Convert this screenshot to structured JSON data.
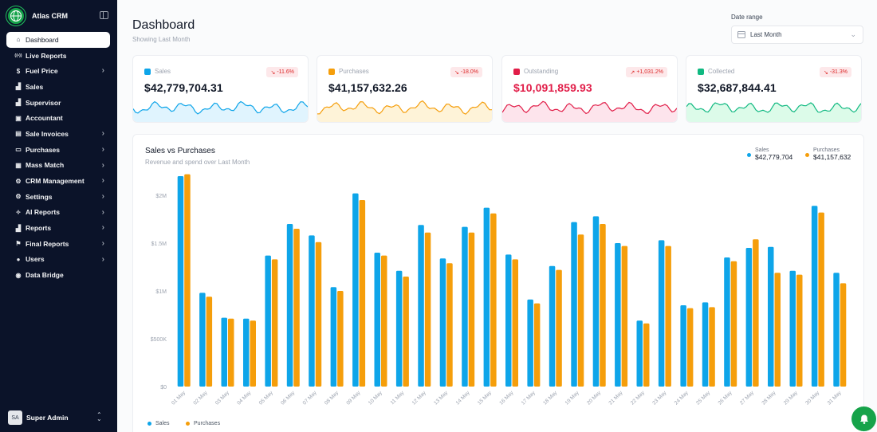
{
  "brand": {
    "name": "Atlas CRM"
  },
  "sidebar": {
    "items": [
      {
        "label": "Dashboard",
        "icon": "home-icon",
        "glyph": "⌂",
        "active": true,
        "expandable": false
      },
      {
        "label": "Live Reports",
        "icon": "broadcast-icon",
        "glyph": "((•))",
        "expandable": false
      },
      {
        "label": "Fuel Price",
        "icon": "dollar-icon",
        "glyph": "$",
        "expandable": true
      },
      {
        "label": "Sales",
        "icon": "bar-chart-icon",
        "glyph": "▟",
        "expandable": false
      },
      {
        "label": "Supervisor",
        "icon": "chart-icon",
        "glyph": "▟",
        "expandable": false
      },
      {
        "label": "Accountant",
        "icon": "briefcase-icon",
        "glyph": "▣",
        "expandable": false
      },
      {
        "label": "Sale Invoices",
        "icon": "receipt-icon",
        "glyph": "▤",
        "expandable": true
      },
      {
        "label": "Purchases",
        "icon": "cart-icon",
        "glyph": "▭",
        "expandable": true
      },
      {
        "label": "Mass Match",
        "icon": "grid-icon",
        "glyph": "▦",
        "expandable": true
      },
      {
        "label": "CRM Management",
        "icon": "settings-cog-icon",
        "glyph": "⚙",
        "expandable": true
      },
      {
        "label": "Settings",
        "icon": "gear-icon",
        "glyph": "⚙",
        "expandable": true
      },
      {
        "label": "AI Reports",
        "icon": "sparkle-icon",
        "glyph": "✧",
        "expandable": true
      },
      {
        "label": "Reports",
        "icon": "file-chart-icon",
        "glyph": "▟",
        "expandable": true
      },
      {
        "label": "Final Reports",
        "icon": "flag-icon",
        "glyph": "⚑",
        "expandable": true
      },
      {
        "label": "Users",
        "icon": "users-icon",
        "glyph": "●",
        "expandable": true
      },
      {
        "label": "Data Bridge",
        "icon": "database-icon",
        "glyph": "◉",
        "expandable": false
      }
    ]
  },
  "user": {
    "initials": "SA",
    "name": "Super Admin"
  },
  "header": {
    "title": "Dashboard",
    "subtitle": "Showing Last Month"
  },
  "date_range": {
    "label": "Date range",
    "value": "Last Month"
  },
  "cards": [
    {
      "label": "Sales",
      "value": "$42,779,704.31",
      "badge": "-11.6%",
      "trend": "down",
      "accent": "#0ea5e9",
      "fill": "#e0f4fe",
      "value_color": "#111827",
      "badge_bg": "#fde8ea",
      "badge_color": "#dc2626",
      "icon": "wallet-icon"
    },
    {
      "label": "Purchases",
      "value": "$41,157,632.26",
      "badge": "-18.0%",
      "trend": "down",
      "accent": "#f59e0b",
      "fill": "#fef3d8",
      "value_color": "#111827",
      "badge_bg": "#fde8ea",
      "badge_color": "#dc2626",
      "icon": "cart-icon"
    },
    {
      "label": "Outstanding",
      "value": "$10,091,859.93",
      "badge": "+1,031.2%",
      "trend": "up",
      "accent": "#e11d48",
      "fill": "#fde4ec",
      "value_color": "#e11d48",
      "badge_bg": "#fde8ea",
      "badge_color": "#dc2626",
      "icon": "warning-icon"
    },
    {
      "label": "Collected",
      "value": "$32,687,844.41",
      "badge": "-31.3%",
      "trend": "down",
      "accent": "#10b981",
      "fill": "#dcfbe9",
      "value_color": "#111827",
      "badge_bg": "#fde8ea",
      "badge_color": "#dc2626",
      "icon": "check-circle-icon"
    }
  ],
  "chart": {
    "title": "Sales vs Purchases",
    "subtitle": "Revenue and spend over Last Month",
    "legend_top": [
      {
        "name": "Sales",
        "value": "$42,779,704",
        "color": "#0ea5e9"
      },
      {
        "name": "Purchases",
        "value": "$41,157,632",
        "color": "#f59e0b"
      }
    ],
    "legend_bottom": [
      "Sales",
      "Purchases"
    ]
  },
  "chart_data": {
    "type": "bar",
    "title": "Sales vs Purchases",
    "ylim": [
      0,
      2200000
    ],
    "yticks": [
      0,
      500000,
      1000000,
      1500000,
      2000000
    ],
    "ytick_labels": [
      "$0",
      "$500K",
      "$1M",
      "$1.5M",
      "$2M"
    ],
    "categories": [
      "01 May",
      "02 May",
      "03 May",
      "04 May",
      "05 May",
      "06 May",
      "07 May",
      "08 May",
      "09 May",
      "10 May",
      "11 May",
      "12 May",
      "13 May",
      "14 May",
      "15 May",
      "16 May",
      "17 May",
      "18 May",
      "19 May",
      "20 May",
      "21 May",
      "22 May",
      "23 May",
      "24 May",
      "25 May",
      "26 May",
      "27 May",
      "28 May",
      "29 May",
      "30 May",
      "31 May"
    ],
    "series": [
      {
        "name": "Sales",
        "color": "#0ea5e9",
        "values": [
          2200000,
          980000,
          720000,
          710000,
          1370000,
          1700000,
          1580000,
          1040000,
          2020000,
          1400000,
          1210000,
          1690000,
          1340000,
          1670000,
          1870000,
          1380000,
          910000,
          1260000,
          1720000,
          1780000,
          1500000,
          690000,
          1530000,
          850000,
          880000,
          1350000,
          1450000,
          1460000,
          1210000,
          1890000,
          1190000
        ]
      },
      {
        "name": "Purchases",
        "color": "#f59e0b",
        "values": [
          2220000,
          940000,
          710000,
          690000,
          1330000,
          1650000,
          1510000,
          1000000,
          1950000,
          1370000,
          1150000,
          1610000,
          1290000,
          1610000,
          1810000,
          1330000,
          870000,
          1220000,
          1590000,
          1700000,
          1470000,
          660000,
          1470000,
          820000,
          830000,
          1310000,
          1540000,
          1190000,
          1170000,
          1820000,
          1080000
        ]
      }
    ]
  }
}
